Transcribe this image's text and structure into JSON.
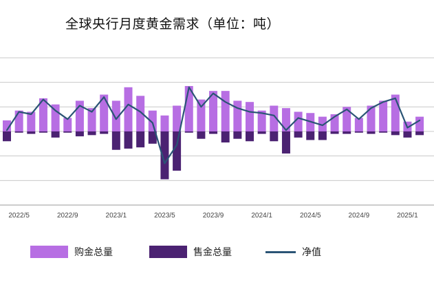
{
  "chart_data": {
    "type": "bar",
    "title": "全球央行月度黄金需求（单位：吨）",
    "xlabel": "",
    "ylabel": "",
    "ylim": [
      -60,
      60
    ],
    "grid": true,
    "legend_position": "bottom",
    "colors": {
      "buy": "#b76ee3",
      "sell": "#4b2272",
      "net": "#2a5475"
    },
    "x_tick_labels": [
      {
        "label": "2022/5",
        "index": 1
      },
      {
        "label": "2022/9",
        "index": 5
      },
      {
        "label": "2023/1",
        "index": 9
      },
      {
        "label": "2023/5",
        "index": 13
      },
      {
        "label": "2023/9",
        "index": 17
      },
      {
        "label": "2024/1",
        "index": 21
      },
      {
        "label": "2024/5",
        "index": 25
      },
      {
        "label": "2024/9",
        "index": 29
      },
      {
        "label": "2025/1",
        "index": 33
      }
    ],
    "categories": [
      "2022/4",
      "2022/5",
      "2022/6",
      "2022/7",
      "2022/8",
      "2022/9",
      "2022/10",
      "2022/11",
      "2022/12",
      "2023/1",
      "2023/2",
      "2023/3",
      "2023/4",
      "2023/5",
      "2023/6",
      "2023/7",
      "2023/8",
      "2023/9",
      "2023/10",
      "2023/11",
      "2023/12",
      "2024/1",
      "2024/2",
      "2024/3",
      "2024/4",
      "2024/5",
      "2024/6",
      "2024/7",
      "2024/8",
      "2024/9",
      "2024/10",
      "2024/11",
      "2024/12",
      "2025/1",
      "2025/2"
    ],
    "series": [
      {
        "name": "购金总量",
        "values": [
          9,
          17,
          16,
          27,
          22,
          11,
          25,
          19,
          30,
          25,
          36,
          29,
          17,
          13,
          21,
          37,
          26,
          33,
          33,
          25,
          24,
          17,
          21,
          19,
          16,
          15,
          12,
          14,
          20,
          11,
          21,
          25,
          30,
          8,
          12
        ]
      },
      {
        "name": "售金总量",
        "values": [
          -8,
          -1,
          -2,
          -1,
          -5,
          -1,
          -4,
          -3,
          -2,
          -15,
          -14,
          -13,
          -10,
          -39,
          -32,
          -1,
          -6,
          -2,
          -9,
          -6,
          -8,
          -2,
          -8,
          -18,
          -5,
          -7,
          -7,
          -2,
          -2,
          -1,
          -2,
          -1,
          -3,
          -5,
          -3
        ]
      },
      {
        "name": "净值",
        "values": [
          1,
          16,
          14,
          26,
          17,
          10,
          21,
          16,
          28,
          10,
          22,
          16,
          7,
          -26,
          -11,
          36,
          20,
          31,
          24,
          19,
          16,
          15,
          13,
          1,
          11,
          8,
          5,
          12,
          18,
          10,
          19,
          24,
          27,
          3,
          9
        ]
      }
    ]
  }
}
